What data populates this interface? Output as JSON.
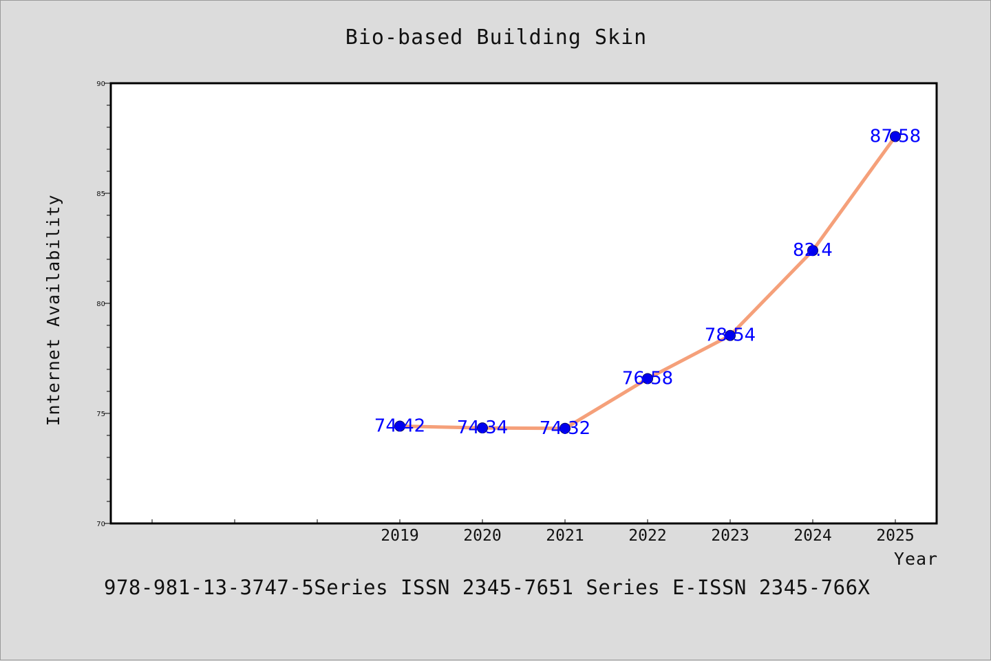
{
  "chart_data": {
    "type": "line",
    "title": "Bio-based Building Skin",
    "xlabel": "Year",
    "ylabel": "Internet Availability",
    "categories": [
      "2019",
      "2020",
      "2021",
      "2022",
      "2023",
      "2024",
      "2025"
    ],
    "values": [
      74.42,
      74.34,
      74.32,
      76.58,
      78.54,
      82.4,
      87.58
    ],
    "data_labels": [
      "74.42",
      "74.34",
      "74.32",
      "76.58",
      "78.54",
      "82.4",
      "87.58"
    ],
    "ylim": [
      70,
      90
    ],
    "yticks": [
      70,
      75,
      80,
      85,
      90
    ],
    "y_minor_step": 1,
    "x_extra_slots_before": 3,
    "grid": false,
    "legend": "none",
    "line_color": "#f5a07a",
    "marker_color": "#0000ee",
    "label_color": "#0000ff",
    "background": "#dcdcdc",
    "plot_background": "#ffffff"
  },
  "footer": {
    "text": "978-981-13-3747-5Series ISSN 2345-7651 Series E-ISSN 2345-766X"
  }
}
